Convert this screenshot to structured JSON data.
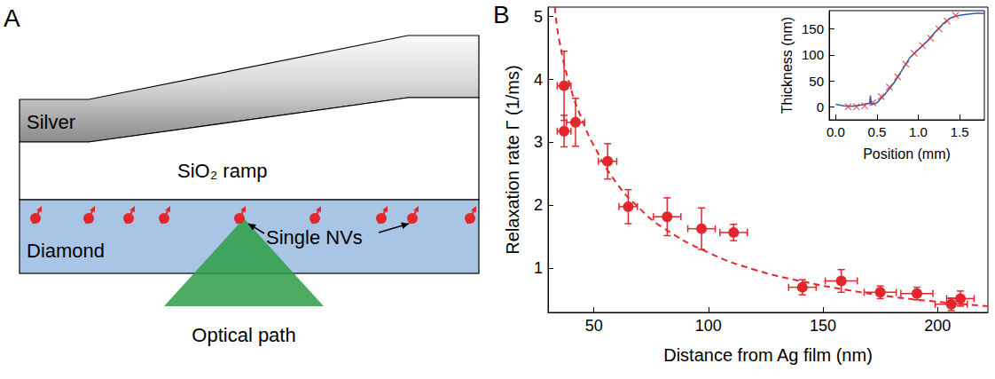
{
  "diagram": {
    "panel_label": "A",
    "layers": {
      "silver": "Silver",
      "ramp": "SiO₂ ramp",
      "diamond": "Diamond"
    },
    "annotation": "Single NVs",
    "beam": "Optical path"
  },
  "chart_data": [
    {
      "type": "scatter",
      "panel_label": "B",
      "x_label": "Distance from Ag film (nm)",
      "y_label": "Relaxation rate Γ (1/ms)",
      "xlim": [
        30,
        222
      ],
      "xticks": [
        50,
        100,
        150,
        200
      ],
      "ylim": [
        0.3,
        5.15
      ],
      "yticks": [
        1,
        2,
        3,
        4,
        5
      ],
      "grid": false,
      "series": [
        {
          "type": "scatter",
          "marker": "circle",
          "color": "#e3262b",
          "x": [
            37,
            37,
            42,
            56,
            65,
            82,
            97,
            111,
            141,
            158,
            175,
            191,
            206,
            210
          ],
          "values": [
            3.9,
            3.18,
            3.32,
            2.7,
            1.98,
            1.82,
            1.63,
            1.57,
            0.7,
            0.8,
            0.62,
            0.6,
            0.43,
            0.52
          ],
          "x_error": [
            3,
            3,
            4,
            4,
            4,
            6,
            6,
            6,
            6,
            7,
            7,
            7,
            7,
            6
          ],
          "y_error": [
            0.55,
            0.25,
            0.38,
            0.28,
            0.27,
            0.3,
            0.33,
            0.13,
            0.12,
            0.18,
            0.1,
            0.1,
            0.1,
            0.12
          ]
        },
        {
          "type": "line",
          "line_style": "dashed",
          "color": "#e3262b",
          "x": [
            33,
            35,
            40,
            45,
            50,
            60,
            70,
            80,
            100,
            120,
            140,
            160,
            180,
            200,
            222
          ],
          "values": [
            5.15,
            4.6,
            3.85,
            3.35,
            2.95,
            2.35,
            1.95,
            1.65,
            1.25,
            0.98,
            0.8,
            0.66,
            0.55,
            0.47,
            0.4
          ]
        }
      ]
    },
    {
      "type": "line",
      "x_label": "Position (mm)",
      "y_label": "Thickness (nm)",
      "xlim": [
        -0.08,
        1.8
      ],
      "xticks": [
        {
          "value": 0,
          "label": "0.0"
        },
        0.5,
        {
          "value": 1,
          "label": "1.0"
        },
        1.5
      ],
      "ylim": [
        -25,
        185
      ],
      "yticks": [
        0,
        50,
        100,
        150
      ],
      "grid": false,
      "series": [
        {
          "type": "line",
          "line_style": "solid",
          "color": "#2a5caa",
          "x": [
            0,
            0.1,
            0.2,
            0.3,
            0.38,
            0.41,
            0.42,
            0.43,
            0.5,
            0.6,
            0.7,
            0.8,
            0.9,
            1.0,
            1.1,
            1.2,
            1.3,
            1.4,
            1.5,
            1.6,
            1.7,
            1.8
          ],
          "values": [
            5,
            2,
            1,
            3,
            6,
            6,
            22,
            4,
            8,
            25,
            45,
            70,
            95,
            110,
            125,
            143,
            160,
            172,
            176,
            178,
            180,
            180
          ]
        },
        {
          "type": "scatter",
          "marker": "x",
          "color": "#e3262b",
          "x": [
            0.15,
            0.25,
            0.35,
            0.45,
            0.55,
            0.65,
            0.75,
            0.85,
            0.95,
            1.05,
            1.15,
            1.25,
            1.35,
            1.45
          ],
          "values": [
            0,
            0,
            2,
            8,
            20,
            38,
            58,
            82,
            103,
            118,
            132,
            150,
            165,
            176
          ]
        }
      ]
    }
  ]
}
